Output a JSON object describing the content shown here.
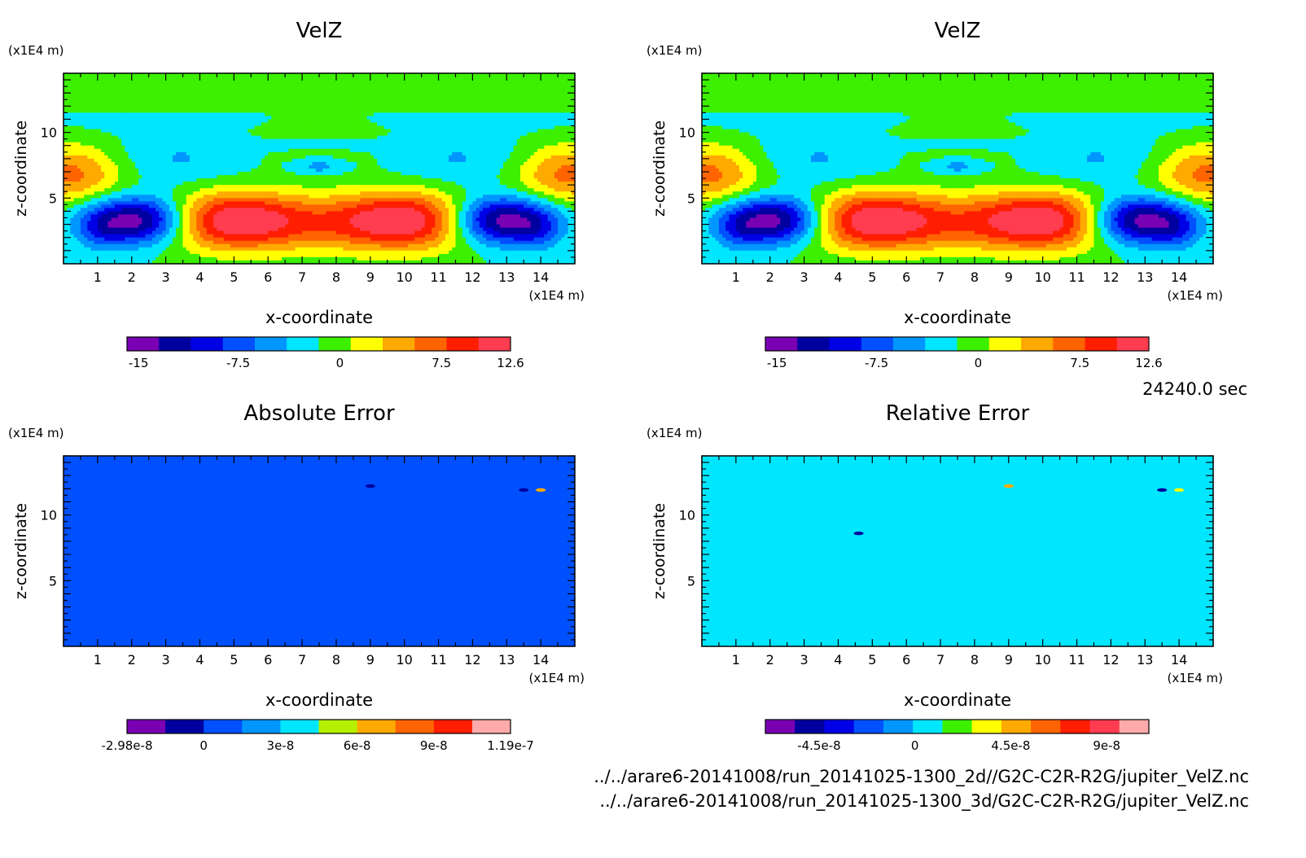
{
  "timestamp": "24240.0 sec",
  "footer": {
    "line1": "../../arare6-20141008/run_20141025-1300_2d//G2C-C2R-R2G/jupiter_VelZ.nc",
    "line2": "../../arare6-20141008/run_20141025-1300_3d/G2C-C2R-R2G/jupiter_VelZ.nc"
  },
  "chart_data": [
    {
      "type": "heatmap",
      "title": "VelZ",
      "xlabel": "x-coordinate",
      "ylabel": "z-coordinate",
      "x_unit": "(x1E4 m)",
      "y_unit": "(x1E4 m)",
      "xlim": [
        0,
        15
      ],
      "ylim": [
        0,
        14.5
      ],
      "x_ticks": [
        1,
        2,
        3,
        4,
        5,
        6,
        7,
        8,
        9,
        10,
        11,
        12,
        13,
        14
      ],
      "y_ticks": [
        5,
        10
      ],
      "field": "velz",
      "colorbar": {
        "colors": [
          "#7a00b4",
          "#0000a0",
          "#0000e6",
          "#0050ff",
          "#0096ff",
          "#00e6ff",
          "#3cf000",
          "#ffff00",
          "#ffaa00",
          "#ff6400",
          "#ff1e00",
          "#ff3c50"
        ],
        "labels": [
          {
            "text": "-15",
            "pos": 0.03
          },
          {
            "text": "-7.5",
            "pos": 0.29
          },
          {
            "text": "0",
            "pos": 0.555
          },
          {
            "text": "7.5",
            "pos": 0.82
          },
          {
            "text": "12.6",
            "pos": 1.0
          }
        ]
      }
    },
    {
      "type": "heatmap",
      "title": "VelZ",
      "xlabel": "x-coordinate",
      "ylabel": "z-coordinate",
      "x_unit": "(x1E4 m)",
      "y_unit": "(x1E4 m)",
      "xlim": [
        0,
        15
      ],
      "ylim": [
        0,
        14.5
      ],
      "x_ticks": [
        1,
        2,
        3,
        4,
        5,
        6,
        7,
        8,
        9,
        10,
        11,
        12,
        13,
        14
      ],
      "y_ticks": [
        5,
        10
      ],
      "field": "velz",
      "colorbar": {
        "colors": [
          "#7a00b4",
          "#0000a0",
          "#0000e6",
          "#0050ff",
          "#0096ff",
          "#00e6ff",
          "#3cf000",
          "#ffff00",
          "#ffaa00",
          "#ff6400",
          "#ff1e00",
          "#ff3c50"
        ],
        "labels": [
          {
            "text": "-15",
            "pos": 0.03
          },
          {
            "text": "-7.5",
            "pos": 0.29
          },
          {
            "text": "0",
            "pos": 0.555
          },
          {
            "text": "7.5",
            "pos": 0.82
          },
          {
            "text": "12.6",
            "pos": 1.0
          }
        ]
      }
    },
    {
      "type": "heatmap",
      "title": "Absolute Error",
      "xlabel": "x-coordinate",
      "ylabel": "z-coordinate",
      "x_unit": "(x1E4 m)",
      "y_unit": "(x1E4 m)",
      "xlim": [
        0,
        15
      ],
      "ylim": [
        0,
        14.5
      ],
      "x_ticks": [
        1,
        2,
        3,
        4,
        5,
        6,
        7,
        8,
        9,
        10,
        11,
        12,
        13,
        14
      ],
      "y_ticks": [
        5,
        10
      ],
      "background": "#0050ff",
      "spots": [
        {
          "x": 9.0,
          "z": 12.2,
          "color": "#0000a0"
        },
        {
          "x": 13.5,
          "z": 11.9,
          "color": "#0000a0"
        },
        {
          "x": 14.0,
          "z": 11.9,
          "color": "#ffaa00"
        }
      ],
      "colorbar": {
        "colors": [
          "#7a00b4",
          "#0000a0",
          "#0050ff",
          "#0096ff",
          "#00e6ff",
          "#b4f000",
          "#ffaa00",
          "#ff6400",
          "#ff1e00",
          "#ffaaaa"
        ],
        "labels": [
          {
            "text": "-2.98e-8",
            "pos": 0.0
          },
          {
            "text": "0",
            "pos": 0.2
          },
          {
            "text": "3e-8",
            "pos": 0.4
          },
          {
            "text": "6e-8",
            "pos": 0.6
          },
          {
            "text": "9e-8",
            "pos": 0.8
          },
          {
            "text": "1.19e-7",
            "pos": 1.0
          }
        ]
      }
    },
    {
      "type": "heatmap",
      "title": "Relative Error",
      "xlabel": "x-coordinate",
      "ylabel": "z-coordinate",
      "x_unit": "(x1E4 m)",
      "y_unit": "(x1E4 m)",
      "xlim": [
        0,
        15
      ],
      "ylim": [
        0,
        14.5
      ],
      "x_ticks": [
        1,
        2,
        3,
        4,
        5,
        6,
        7,
        8,
        9,
        10,
        11,
        12,
        13,
        14
      ],
      "y_ticks": [
        5,
        10
      ],
      "background": "#00e6ff",
      "spots": [
        {
          "x": 9.0,
          "z": 12.2,
          "color": "#ffaa00"
        },
        {
          "x": 4.6,
          "z": 8.6,
          "color": "#0000a0"
        },
        {
          "x": 13.5,
          "z": 11.9,
          "color": "#0000a0"
        },
        {
          "x": 14.0,
          "z": 11.9,
          "color": "#ffff00"
        }
      ],
      "colorbar": {
        "colors": [
          "#7a00b4",
          "#0000a0",
          "#0000e6",
          "#0050ff",
          "#0096ff",
          "#00e6ff",
          "#3cf000",
          "#ffff00",
          "#ffaa00",
          "#ff6400",
          "#ff1e00",
          "#ff3c50",
          "#ffaaaa"
        ],
        "labels": [
          {
            "text": "-4.5e-8",
            "pos": 0.14
          },
          {
            "text": "0",
            "pos": 0.39
          },
          {
            "text": "4.5e-8",
            "pos": 0.64
          },
          {
            "text": "9e-8",
            "pos": 0.89
          }
        ]
      }
    }
  ]
}
